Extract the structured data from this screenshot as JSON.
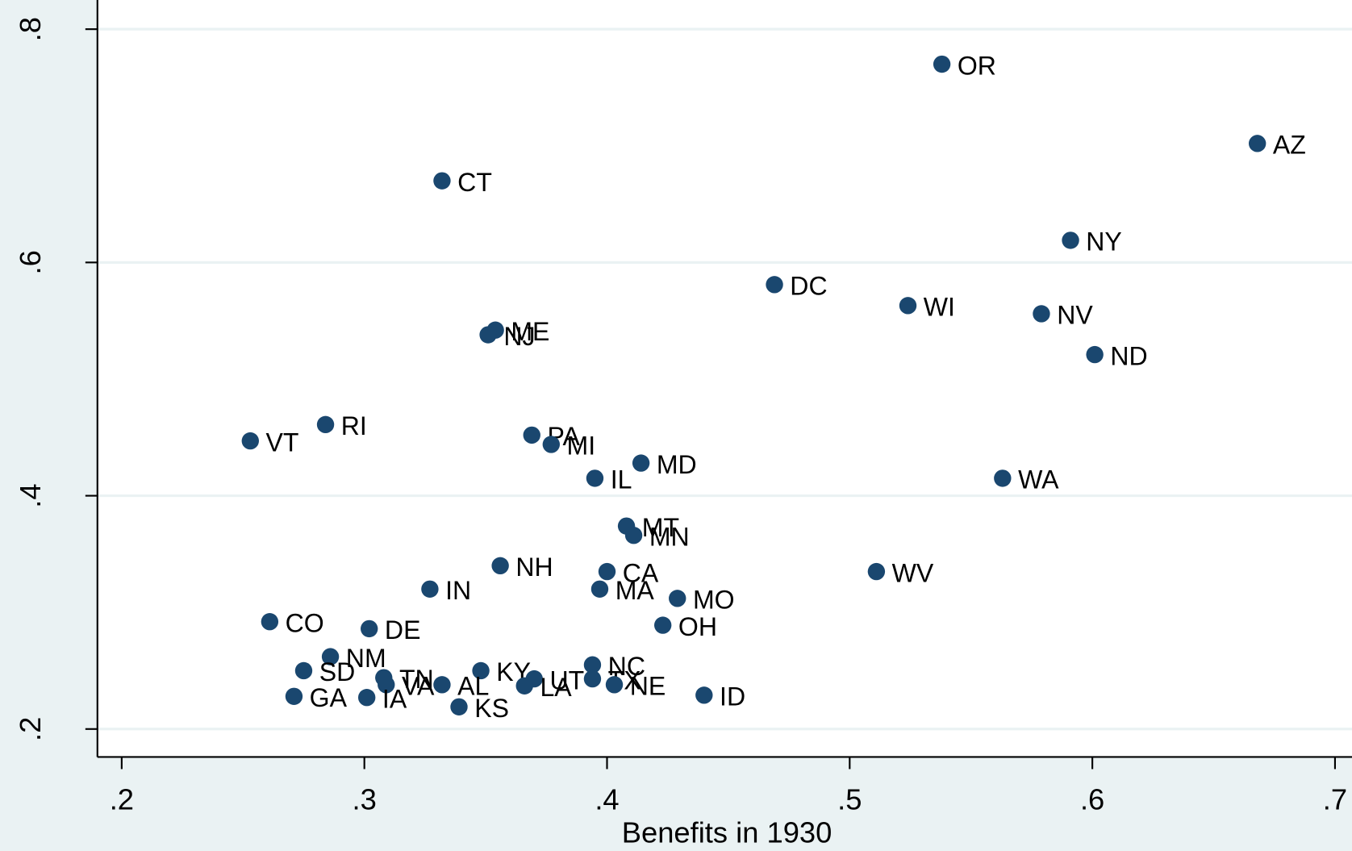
{
  "chart_data": {
    "type": "scatter",
    "xlabel": "Benefits in 1930",
    "labels": [
      "OR",
      "AZ",
      "CT",
      "NY",
      "DC",
      "WI",
      "NV",
      "ND",
      "ME",
      "NJ",
      "RI",
      "VT",
      "PA",
      "MI",
      "MD",
      "IL",
      "WA",
      "MT",
      "MN",
      "NH",
      "CA",
      "WV",
      "IN",
      "MA",
      "MO",
      "CO",
      "DE",
      "OH",
      "NM",
      "NC",
      "SD",
      "KY",
      "TN",
      "UT",
      "TX",
      "VA",
      "AL",
      "LA",
      "NE",
      "GA",
      "IA",
      "ID",
      "KS"
    ],
    "x": [
      0.538,
      0.668,
      0.332,
      0.591,
      0.469,
      0.524,
      0.579,
      0.601,
      0.354,
      0.351,
      0.284,
      0.253,
      0.369,
      0.377,
      0.414,
      0.395,
      0.563,
      0.408,
      0.411,
      0.356,
      0.4,
      0.511,
      0.327,
      0.397,
      0.429,
      0.261,
      0.302,
      0.423,
      0.286,
      0.394,
      0.275,
      0.348,
      0.308,
      0.37,
      0.394,
      0.309,
      0.332,
      0.366,
      0.403,
      0.271,
      0.301,
      0.44,
      0.339
    ],
    "values": [
      0.77,
      0.702,
      0.67,
      0.619,
      0.581,
      0.563,
      0.556,
      0.521,
      0.542,
      0.538,
      0.461,
      0.447,
      0.452,
      0.444,
      0.428,
      0.415,
      0.415,
      0.374,
      0.366,
      0.34,
      0.335,
      0.335,
      0.32,
      0.32,
      0.312,
      0.292,
      0.286,
      0.289,
      0.262,
      0.255,
      0.25,
      0.25,
      0.244,
      0.243,
      0.243,
      0.238,
      0.238,
      0.237,
      0.238,
      0.228,
      0.227,
      0.229,
      0.219
    ],
    "color": "#1a476f",
    "xlim": [
      0.19,
      0.707
    ],
    "ylim": [
      0.176,
      0.825
    ],
    "xticks": [
      {
        "value": 0.2,
        "label": ".2"
      },
      {
        "value": 0.3,
        "label": ".3"
      },
      {
        "value": 0.4,
        "label": ".4"
      },
      {
        "value": 0.5,
        "label": ".5"
      },
      {
        "value": 0.6,
        "label": ".6"
      },
      {
        "value": 0.7,
        "label": ".7"
      }
    ],
    "yticks": [
      {
        "value": 0.2,
        "label": ".2"
      },
      {
        "value": 0.4,
        "label": ".4"
      },
      {
        "value": 0.6,
        "label": ".6"
      },
      {
        "value": 0.8,
        "label": ".8"
      }
    ],
    "grid": true
  }
}
